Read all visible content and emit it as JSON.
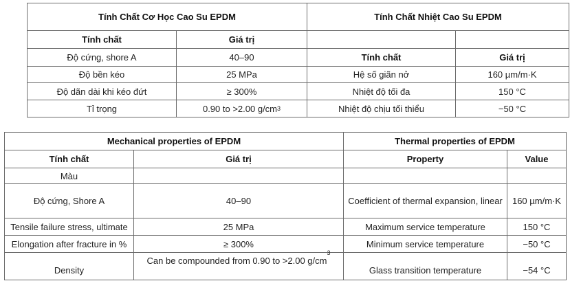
{
  "table_vi": {
    "mechanical": {
      "title": "Tính Chất Cơ Học Cao Su EPDM",
      "headers": [
        "Tính chất",
        "Giá trị"
      ],
      "rows": [
        [
          "Độ cứng, shore A",
          "40–90"
        ],
        [
          "Độ bền kéo",
          "25 MPa"
        ],
        [
          "Độ dãn dài khi kéo đứt",
          "≥ 300%"
        ],
        [
          "Tỉ trọng",
          "0.90 to >2.00 g/cm"
        ]
      ],
      "density_sup": "3"
    },
    "thermal": {
      "title": "Tính Chất Nhiệt Cao Su EPDM",
      "headers": [
        "Tính chất",
        "Giá trị"
      ],
      "rows": [
        [
          "Hệ số giãn nở",
          "160 µm/m·K"
        ],
        [
          "Nhiệt độ tối đa",
          "150 °C"
        ],
        [
          "Nhiệt độ chịu tối thiểu",
          "−50 °C"
        ]
      ]
    }
  },
  "table_en": {
    "mechanical": {
      "title": "Mechanical properties of EPDM",
      "headers": [
        "Tính chất",
        "Giá trị"
      ],
      "rows": [
        [
          "Màu",
          ""
        ],
        [
          "Độ cứng, Shore A",
          "40–90"
        ],
        [
          "Tensile failure stress, ultimate",
          "25 MPa"
        ],
        [
          "Elongation after fracture in %",
          "≥ 300%"
        ],
        [
          "Density",
          "Can be compounded from 0.90 to >2.00  g/cm"
        ]
      ],
      "density_sup": "3"
    },
    "thermal": {
      "title": "Thermal properties of EPDM",
      "headers": [
        "Property",
        "Value"
      ],
      "rows": [
        [
          "",
          ""
        ],
        [
          "Coefficient of thermal expansion, linear",
          "160 µm/m·K"
        ],
        [
          "Maximum service temperature",
          "150 °C"
        ],
        [
          "Minimum service temperature",
          "−50 °C"
        ],
        [
          "Glass transition temperature",
          "−54 °C"
        ]
      ]
    }
  }
}
